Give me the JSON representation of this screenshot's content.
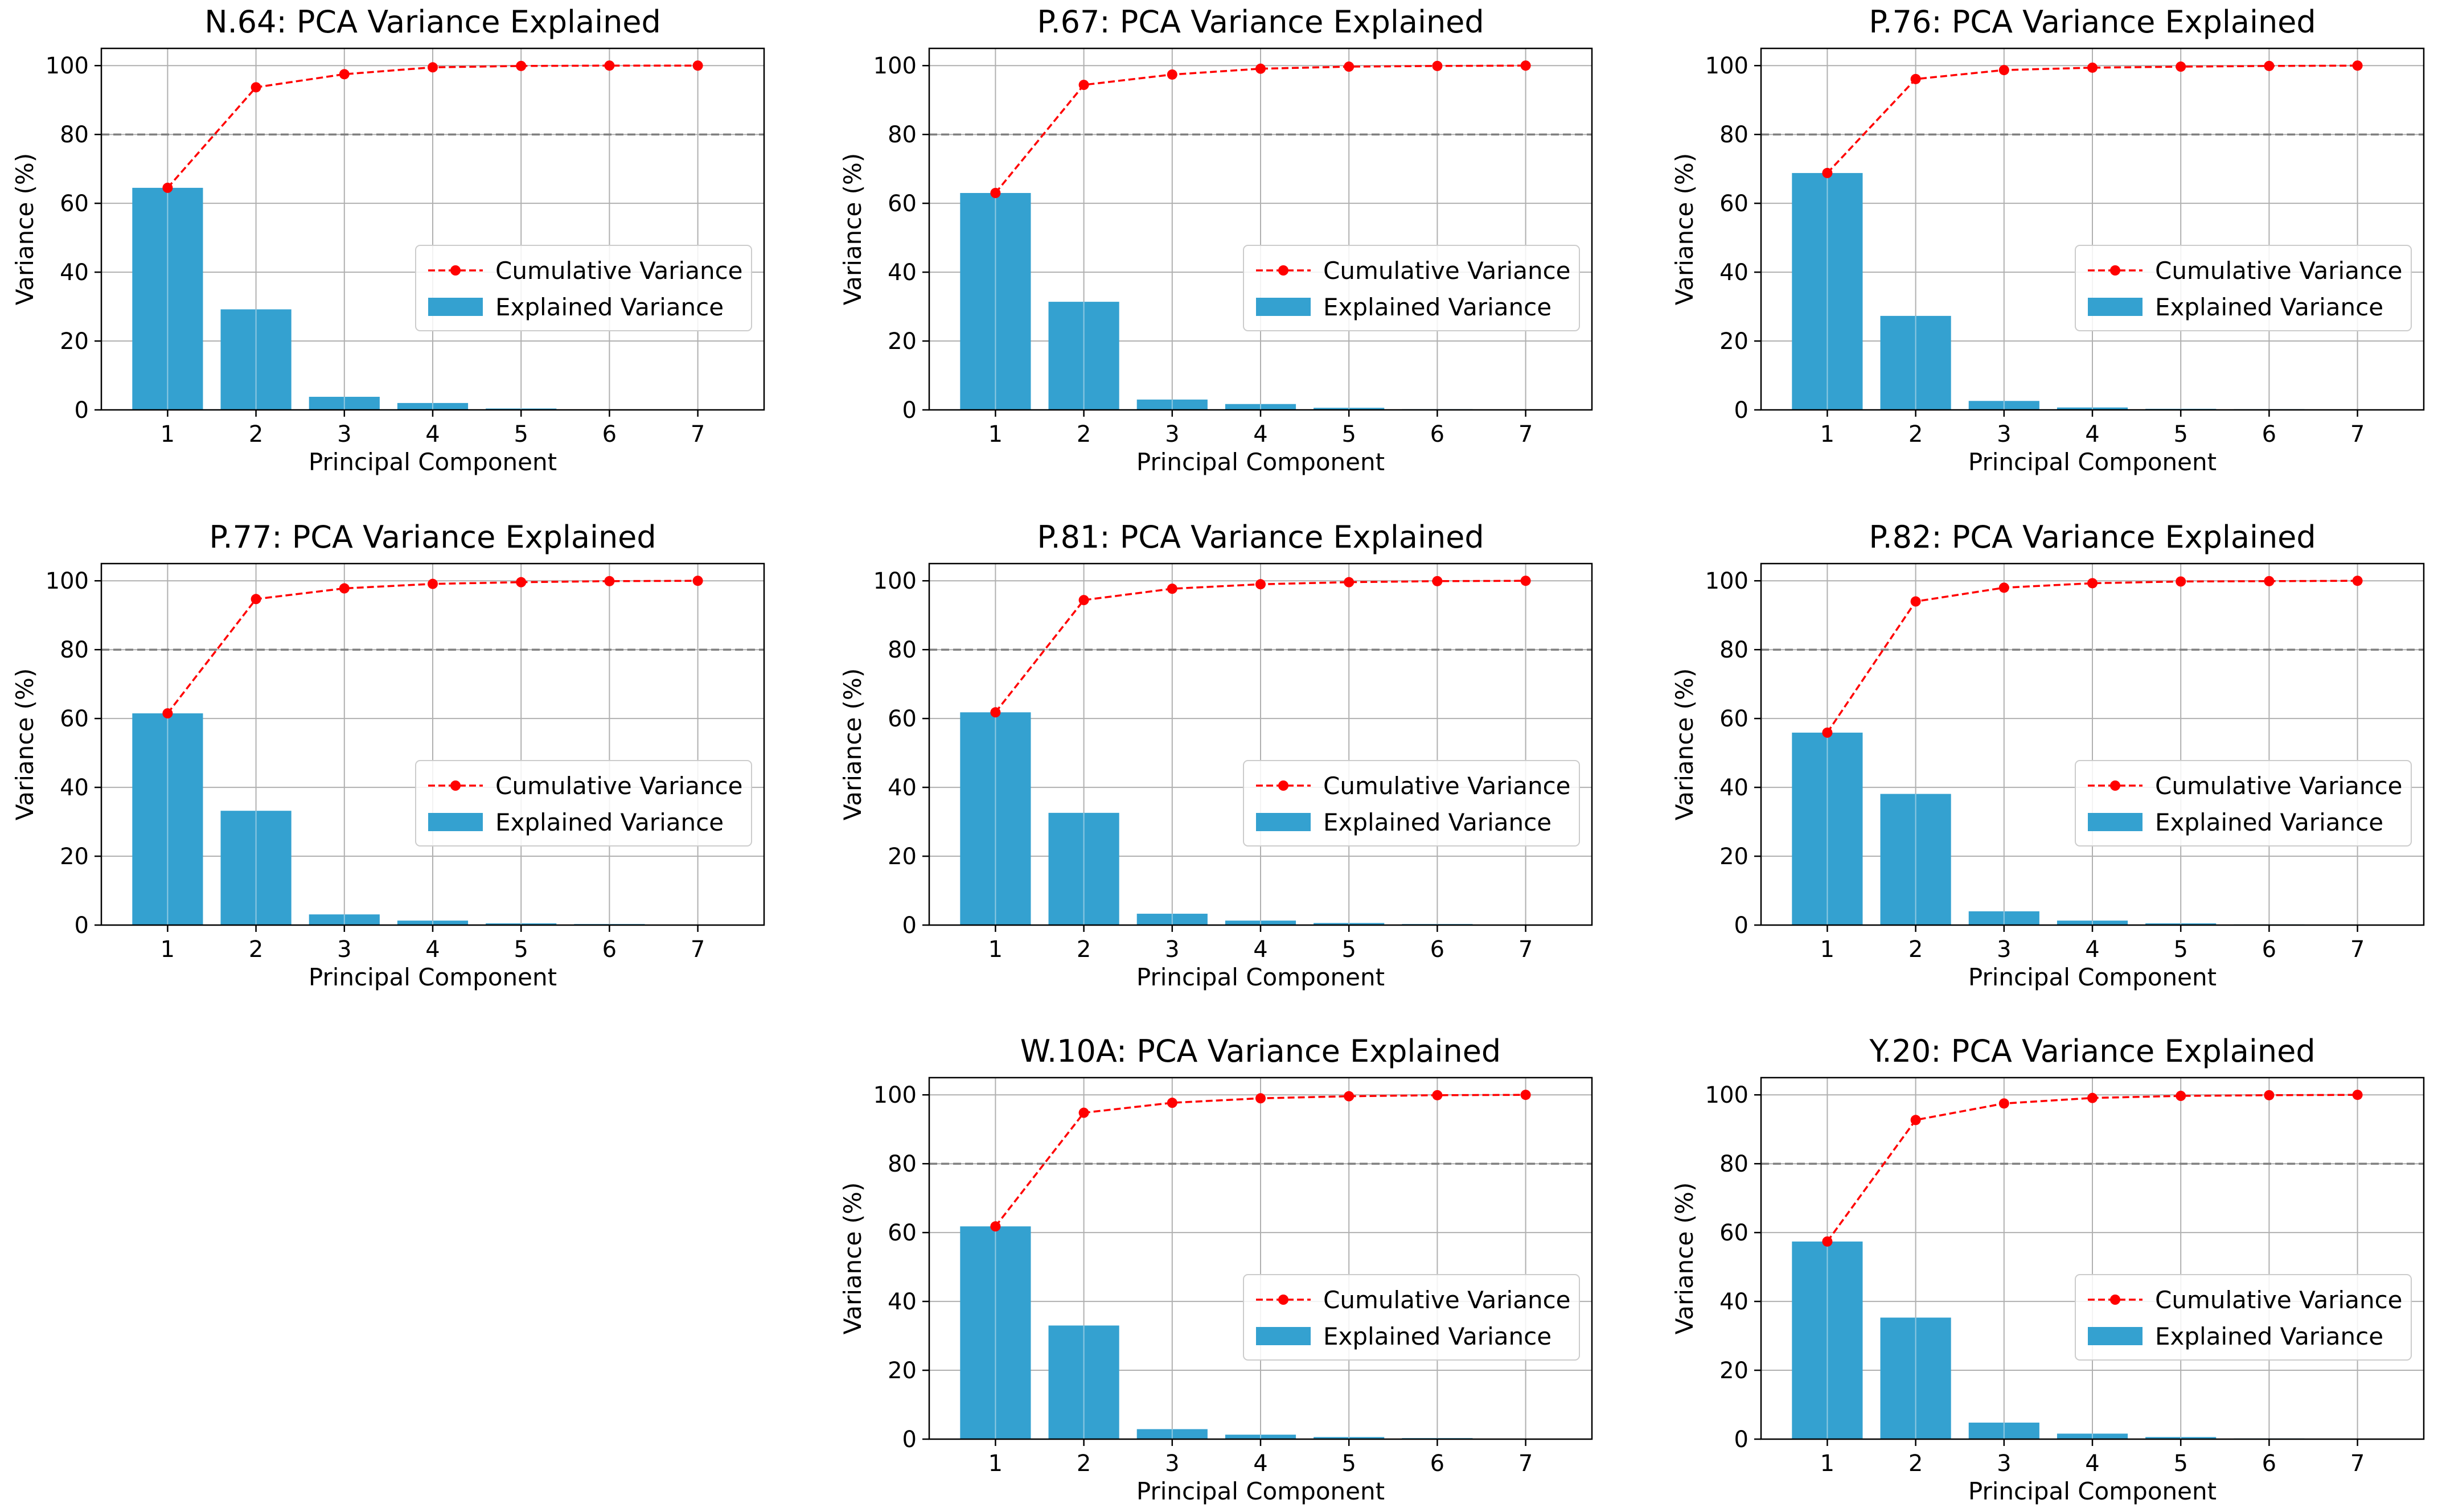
{
  "colors": {
    "bar": "#34a1d0",
    "cumulative": "#ff0000",
    "threshold": "#808080",
    "grid": "#b0b0b0"
  },
  "chart_data": [
    {
      "type": "bar",
      "title": "N.64: PCA Variance Explained",
      "xlabel": "Principal Component",
      "ylabel": "Variance (%)",
      "categories": [
        "1",
        "2",
        "3",
        "4",
        "5",
        "6",
        "7"
      ],
      "ylim": [
        0,
        105
      ],
      "yticks": [
        "0",
        "20",
        "40",
        "60",
        "80",
        "100"
      ],
      "threshold": 80,
      "series": [
        {
          "name": "Explained Variance",
          "kind": "bar",
          "values": [
            64.5,
            29.2,
            3.8,
            2.0,
            0.4,
            0.1,
            0.0
          ]
        },
        {
          "name": "Cumulative Variance",
          "kind": "line",
          "values": [
            64.5,
            93.7,
            97.5,
            99.5,
            99.9,
            100.0,
            100.0
          ]
        }
      ],
      "legend": [
        "Cumulative Variance",
        "Explained Variance"
      ],
      "legend_position": "center-right"
    },
    {
      "type": "bar",
      "title": "P.67: PCA Variance Explained",
      "xlabel": "Principal Component",
      "ylabel": "Variance (%)",
      "categories": [
        "1",
        "2",
        "3",
        "4",
        "5",
        "6",
        "7"
      ],
      "ylim": [
        0,
        105
      ],
      "yticks": [
        "0",
        "20",
        "40",
        "60",
        "80",
        "100"
      ],
      "threshold": 80,
      "series": [
        {
          "name": "Explained Variance",
          "kind": "bar",
          "values": [
            63.0,
            31.4,
            3.0,
            1.7,
            0.6,
            0.2,
            0.1
          ]
        },
        {
          "name": "Cumulative Variance",
          "kind": "line",
          "values": [
            63.0,
            94.4,
            97.4,
            99.1,
            99.7,
            99.9,
            100.0
          ]
        }
      ],
      "legend": [
        "Cumulative Variance",
        "Explained Variance"
      ],
      "legend_position": "center-right"
    },
    {
      "type": "bar",
      "title": "P.76: PCA Variance Explained",
      "xlabel": "Principal Component",
      "ylabel": "Variance (%)",
      "categories": [
        "1",
        "2",
        "3",
        "4",
        "5",
        "6",
        "7"
      ],
      "ylim": [
        0,
        105
      ],
      "yticks": [
        "0",
        "20",
        "40",
        "60",
        "80",
        "100"
      ],
      "threshold": 80,
      "series": [
        {
          "name": "Explained Variance",
          "kind": "bar",
          "values": [
            68.8,
            27.3,
            2.6,
            0.7,
            0.3,
            0.2,
            0.1
          ]
        },
        {
          "name": "Cumulative Variance",
          "kind": "line",
          "values": [
            68.8,
            96.1,
            98.7,
            99.4,
            99.7,
            99.9,
            100.0
          ]
        }
      ],
      "legend": [
        "Cumulative Variance",
        "Explained Variance"
      ],
      "legend_position": "center-right"
    },
    {
      "type": "bar",
      "title": "P.77: PCA Variance Explained",
      "xlabel": "Principal Component",
      "ylabel": "Variance (%)",
      "categories": [
        "1",
        "2",
        "3",
        "4",
        "5",
        "6",
        "7"
      ],
      "ylim": [
        0,
        105
      ],
      "yticks": [
        "0",
        "20",
        "40",
        "60",
        "80",
        "100"
      ],
      "threshold": 80,
      "series": [
        {
          "name": "Explained Variance",
          "kind": "bar",
          "values": [
            61.5,
            33.2,
            3.1,
            1.3,
            0.5,
            0.3,
            0.1
          ]
        },
        {
          "name": "Cumulative Variance",
          "kind": "line",
          "values": [
            61.5,
            94.7,
            97.8,
            99.1,
            99.6,
            99.9,
            100.0
          ]
        }
      ],
      "legend": [
        "Cumulative Variance",
        "Explained Variance"
      ],
      "legend_position": "center-right"
    },
    {
      "type": "bar",
      "title": "P.81: PCA Variance Explained",
      "xlabel": "Principal Component",
      "ylabel": "Variance (%)",
      "categories": [
        "1",
        "2",
        "3",
        "4",
        "5",
        "6",
        "7"
      ],
      "ylim": [
        0,
        105
      ],
      "yticks": [
        "0",
        "20",
        "40",
        "60",
        "80",
        "100"
      ],
      "threshold": 80,
      "series": [
        {
          "name": "Explained Variance",
          "kind": "bar",
          "values": [
            61.8,
            32.6,
            3.3,
            1.3,
            0.6,
            0.3,
            0.1
          ]
        },
        {
          "name": "Cumulative Variance",
          "kind": "line",
          "values": [
            61.8,
            94.4,
            97.7,
            99.0,
            99.6,
            99.9,
            100.0
          ]
        }
      ],
      "legend": [
        "Cumulative Variance",
        "Explained Variance"
      ],
      "legend_position": "center-right"
    },
    {
      "type": "bar",
      "title": "P.82: PCA Variance Explained",
      "xlabel": "Principal Component",
      "ylabel": "Variance (%)",
      "categories": [
        "1",
        "2",
        "3",
        "4",
        "5",
        "6",
        "7"
      ],
      "ylim": [
        0,
        105
      ],
      "yticks": [
        "0",
        "20",
        "40",
        "60",
        "80",
        "100"
      ],
      "threshold": 80,
      "series": [
        {
          "name": "Explained Variance",
          "kind": "bar",
          "values": [
            55.9,
            38.1,
            4.0,
            1.3,
            0.5,
            0.2,
            0.1
          ]
        },
        {
          "name": "Cumulative Variance",
          "kind": "line",
          "values": [
            55.9,
            94.0,
            98.0,
            99.3,
            99.8,
            99.9,
            100.0
          ]
        }
      ],
      "legend": [
        "Cumulative Variance",
        "Explained Variance"
      ],
      "legend_position": "center-right"
    },
    {
      "type": "bar",
      "title": "W.10A: PCA Variance Explained",
      "xlabel": "Principal Component",
      "ylabel": "Variance (%)",
      "categories": [
        "1",
        "2",
        "3",
        "4",
        "5",
        "6",
        "7"
      ],
      "ylim": [
        0,
        105
      ],
      "yticks": [
        "0",
        "20",
        "40",
        "60",
        "80",
        "100"
      ],
      "threshold": 80,
      "series": [
        {
          "name": "Explained Variance",
          "kind": "bar",
          "values": [
            61.8,
            33.0,
            2.9,
            1.3,
            0.6,
            0.3,
            0.1
          ]
        },
        {
          "name": "Cumulative Variance",
          "kind": "line",
          "values": [
            61.8,
            94.8,
            97.7,
            99.0,
            99.6,
            99.9,
            100.0
          ]
        }
      ],
      "legend": [
        "Cumulative Variance",
        "Explained Variance"
      ],
      "legend_position": "center-right"
    },
    {
      "type": "bar",
      "title": "Y.20: PCA Variance Explained",
      "xlabel": "Principal Component",
      "ylabel": "Variance (%)",
      "categories": [
        "1",
        "2",
        "3",
        "4",
        "5",
        "6",
        "7"
      ],
      "ylim": [
        0,
        105
      ],
      "yticks": [
        "0",
        "20",
        "40",
        "60",
        "80",
        "100"
      ],
      "threshold": 80,
      "series": [
        {
          "name": "Explained Variance",
          "kind": "bar",
          "values": [
            57.4,
            35.3,
            4.8,
            1.6,
            0.6,
            0.2,
            0.1
          ]
        },
        {
          "name": "Cumulative Variance",
          "kind": "line",
          "values": [
            57.4,
            92.7,
            97.5,
            99.1,
            99.7,
            99.9,
            100.0
          ]
        }
      ],
      "legend": [
        "Cumulative Variance",
        "Explained Variance"
      ],
      "legend_position": "center-right"
    }
  ]
}
